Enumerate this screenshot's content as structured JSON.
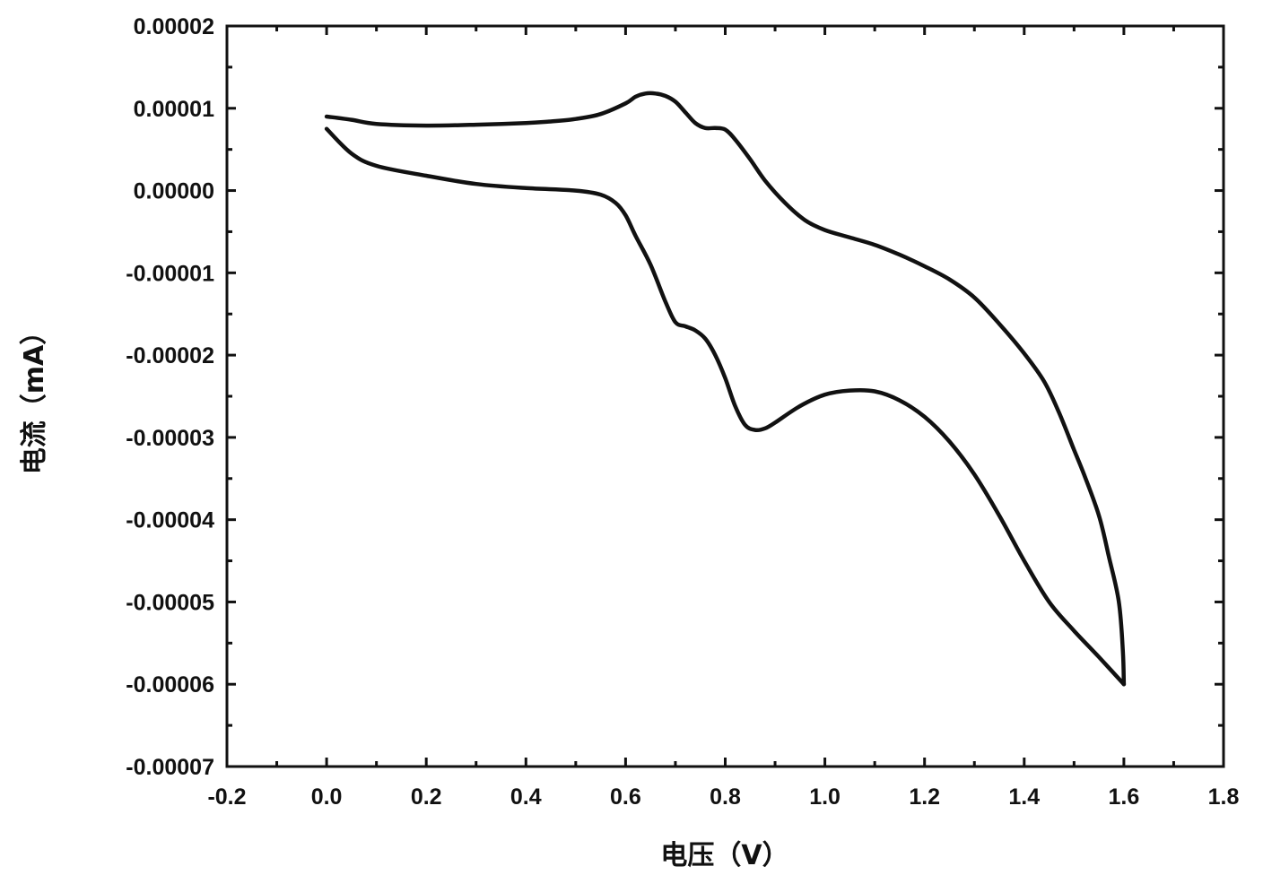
{
  "chart_data": {
    "type": "line",
    "title": "",
    "xlabel": "电压（V）",
    "ylabel": "电流（mA）",
    "xlim": [
      -0.2,
      1.8
    ],
    "ylim": [
      -7e-05,
      2e-05
    ],
    "x_ticks": [
      -0.2,
      0.0,
      0.2,
      0.4,
      0.6,
      0.8,
      1.0,
      1.2,
      1.4,
      1.6,
      1.8
    ],
    "x_tick_labels": [
      "-0.2",
      "0.0",
      "0.2",
      "0.4",
      "0.6",
      "0.8",
      "1.0",
      "1.2",
      "1.4",
      "1.6",
      "1.8"
    ],
    "y_ticks": [
      -7e-05,
      -6e-05,
      -5e-05,
      -4e-05,
      -3e-05,
      -2e-05,
      -1e-05,
      0.0,
      1e-05,
      2e-05
    ],
    "y_tick_labels": [
      "-0.00007",
      "-0.00006",
      "-0.00005",
      "-0.00004",
      "-0.00003",
      "-0.00002",
      "-0.00001",
      "0.00000",
      "0.00001",
      "0.00002"
    ],
    "grid": false,
    "line_color": "#111111",
    "series": [
      {
        "x": [
          0.0,
          0.05,
          0.1,
          0.2,
          0.3,
          0.4,
          0.5,
          0.55,
          0.58,
          0.6,
          0.62,
          0.65,
          0.68,
          0.7,
          0.72,
          0.74,
          0.76,
          0.78,
          0.8,
          0.82,
          0.84,
          0.86,
          0.88,
          0.9,
          0.95,
          1.0,
          1.05,
          1.1,
          1.15,
          1.2,
          1.25,
          1.3,
          1.35,
          1.4,
          1.45,
          1.5,
          1.55,
          1.6
        ],
        "y": [
          7.5e-06,
          4.5e-06,
          3e-06,
          1.8e-06,
          8e-07,
          3e-07,
          0.0,
          -5e-07,
          -1.5e-06,
          -3e-06,
          -5.5e-06,
          -9e-06,
          -1.35e-05,
          -1.6e-05,
          -1.65e-05,
          -1.7e-05,
          -1.8e-05,
          -2e-05,
          -2.28e-05,
          -2.62e-05,
          -2.85e-05,
          -2.91e-05,
          -2.89e-05,
          -2.82e-05,
          -2.62e-05,
          -2.48e-05,
          -2.43e-05,
          -2.44e-05,
          -2.55e-05,
          -2.75e-05,
          -3.05e-05,
          -3.45e-05,
          -3.95e-05,
          -4.5e-05,
          -5e-05,
          -5.35e-05,
          -5.67e-05,
          -6e-05
        ]
      },
      {
        "x": [
          1.6,
          1.598,
          1.59,
          1.57,
          1.55,
          1.52,
          1.5,
          1.47,
          1.44,
          1.4,
          1.35,
          1.3,
          1.25,
          1.2,
          1.15,
          1.1,
          1.05,
          1.0,
          0.96,
          0.92,
          0.88,
          0.85,
          0.82,
          0.8,
          0.78,
          0.76,
          0.74,
          0.72,
          0.7,
          0.68,
          0.66,
          0.64,
          0.62,
          0.6,
          0.55,
          0.5,
          0.45,
          0.4,
          0.3,
          0.2,
          0.1,
          0.05,
          0.0
        ],
        "y": [
          -6e-05,
          -5.6e-05,
          -5e-05,
          -4.45e-05,
          -3.95e-05,
          -3.45e-05,
          -3.15e-05,
          -2.7e-05,
          -2.32e-05,
          -1.98e-05,
          -1.62e-05,
          -1.3e-05,
          -1.08e-05,
          -9.2e-06,
          -7.8e-06,
          -6.6e-06,
          -5.7e-06,
          -4.8e-06,
          -3.6e-06,
          -1.5e-06,
          1.2e-06,
          3.8e-06,
          6.2e-06,
          7.4e-06,
          7.6e-06,
          7.6e-06,
          8.2e-06,
          9.5e-06,
          1.08e-05,
          1.15e-05,
          1.18e-05,
          1.18e-05,
          1.14e-05,
          1.06e-05,
          9.3e-06,
          8.7e-06,
          8.4e-06,
          8.2e-06,
          8e-06,
          7.9e-06,
          8.1e-06,
          8.6e-06,
          9e-06
        ]
      }
    ]
  }
}
